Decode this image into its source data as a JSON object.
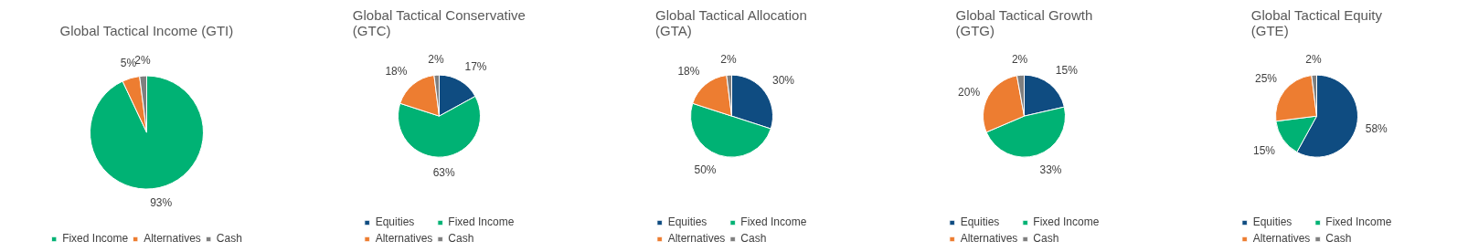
{
  "chart_data": [
    {
      "type": "pie",
      "title": "Global Tactical Income (GTI)",
      "categories": [
        "Fixed Income",
        "Alternatives",
        "Cash"
      ],
      "values": [
        93,
        5,
        2
      ],
      "colors": [
        "#00b274",
        "#ed7d31",
        "#7f7f7f"
      ],
      "value_labels": [
        "93%",
        "5%",
        "2%"
      ],
      "legend": "bottom"
    },
    {
      "type": "pie",
      "title": "Global Tactical Conservative\n(GTC)",
      "categories": [
        "Equities",
        "Fixed Income",
        "Alternatives",
        "Cash"
      ],
      "values": [
        17,
        63,
        18,
        2
      ],
      "colors": [
        "#0f4c81",
        "#00b274",
        "#ed7d31",
        "#7f7f7f"
      ],
      "value_labels": [
        "17%",
        "63%",
        "18%",
        "2%"
      ],
      "legend": "bottom"
    },
    {
      "type": "pie",
      "title": "Global Tactical Allocation\n(GTA)",
      "categories": [
        "Equities",
        "Fixed Income",
        "Alternatives",
        "Cash"
      ],
      "values": [
        30,
        50,
        18,
        2
      ],
      "colors": [
        "#0f4c81",
        "#00b274",
        "#ed7d31",
        "#7f7f7f"
      ],
      "value_labels": [
        "30%",
        "50%",
        "18%",
        "2%"
      ],
      "legend": "bottom"
    },
    {
      "type": "pie",
      "title": "Global Tactical Growth\n(GTG)",
      "categories": [
        "Equities",
        "Fixed Income",
        "Alternatives",
        "Cash"
      ],
      "values": [
        15,
        33,
        20,
        2
      ],
      "colors": [
        "#0f4c81",
        "#00b274",
        "#ed7d31",
        "#7f7f7f"
      ],
      "value_labels": [
        "15%",
        "33%",
        "20%",
        "2%"
      ],
      "legend": "bottom"
    },
    {
      "type": "pie",
      "title": "Global Tactical Equity\n(GTE)",
      "categories": [
        "Equities",
        "Fixed Income",
        "Alternatives",
        "Cash"
      ],
      "values": [
        58,
        15,
        25,
        2
      ],
      "colors": [
        "#0f4c81",
        "#00b274",
        "#ed7d31",
        "#7f7f7f"
      ],
      "value_labels": [
        "58%",
        "15%",
        "25%",
        "2%"
      ],
      "legend": "bottom"
    }
  ]
}
